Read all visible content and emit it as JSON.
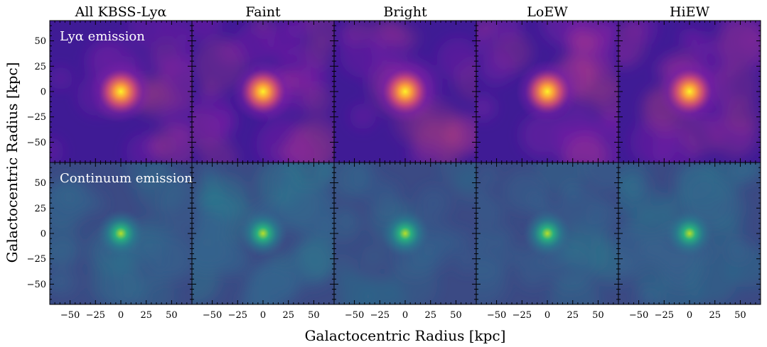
{
  "chart_data": {
    "type": "heatmap",
    "panel_titles": [
      "All KBSS-Lyα",
      "Faint",
      "Bright",
      "LoEW",
      "HiEW"
    ],
    "row_labels": [
      "Lyα emission",
      "Continuum emission"
    ],
    "xlabel": "Galactocentric Radius [kpc]",
    "ylabel": "Galactocentric Radius [kpc]",
    "xlim": [
      -70,
      70
    ],
    "ylim": [
      -70,
      70
    ],
    "xticks": [
      -50,
      -25,
      0,
      25,
      50
    ],
    "yticks": [
      50,
      25,
      0,
      -25,
      -50
    ],
    "xtick_labels": [
      "−50",
      "−25",
      "0",
      "25",
      "50"
    ],
    "ytick_labels": [
      "50",
      "25",
      "0",
      "−25",
      "−50"
    ],
    "source_center": [
      0,
      0
    ],
    "rows": [
      {
        "name": "Lyα emission",
        "colormap": "plasma",
        "colors": {
          "background": "#3f1b95",
          "mid": "#7d20a6",
          "outer": "#d24d76",
          "inner": "#f89440",
          "peak": "#fdf127"
        },
        "panels": [
          {
            "title": "All KBSS-Lyα",
            "background_level": 0.14
          },
          {
            "title": "Faint",
            "background_level": 0.17
          },
          {
            "title": "Bright",
            "background_level": 0.15
          },
          {
            "title": "LoEW",
            "background_level": 0.18
          },
          {
            "title": "HiEW",
            "background_level": 0.16
          }
        ]
      },
      {
        "name": "Continuum emission",
        "colormap": "viridis",
        "colors": {
          "background": "#3b4a84",
          "mid": "#35648e",
          "outer": "#25848e",
          "inner": "#29af7f",
          "peak": "#b5de2b"
        },
        "panels": [
          {
            "title": "All KBSS-Lyα",
            "background_level": 0.18
          },
          {
            "title": "Faint",
            "background_level": 0.3
          },
          {
            "title": "Bright",
            "background_level": 0.16
          },
          {
            "title": "LoEW",
            "background_level": 0.19
          },
          {
            "title": "HiEW",
            "background_level": 0.24
          }
        ]
      }
    ]
  }
}
